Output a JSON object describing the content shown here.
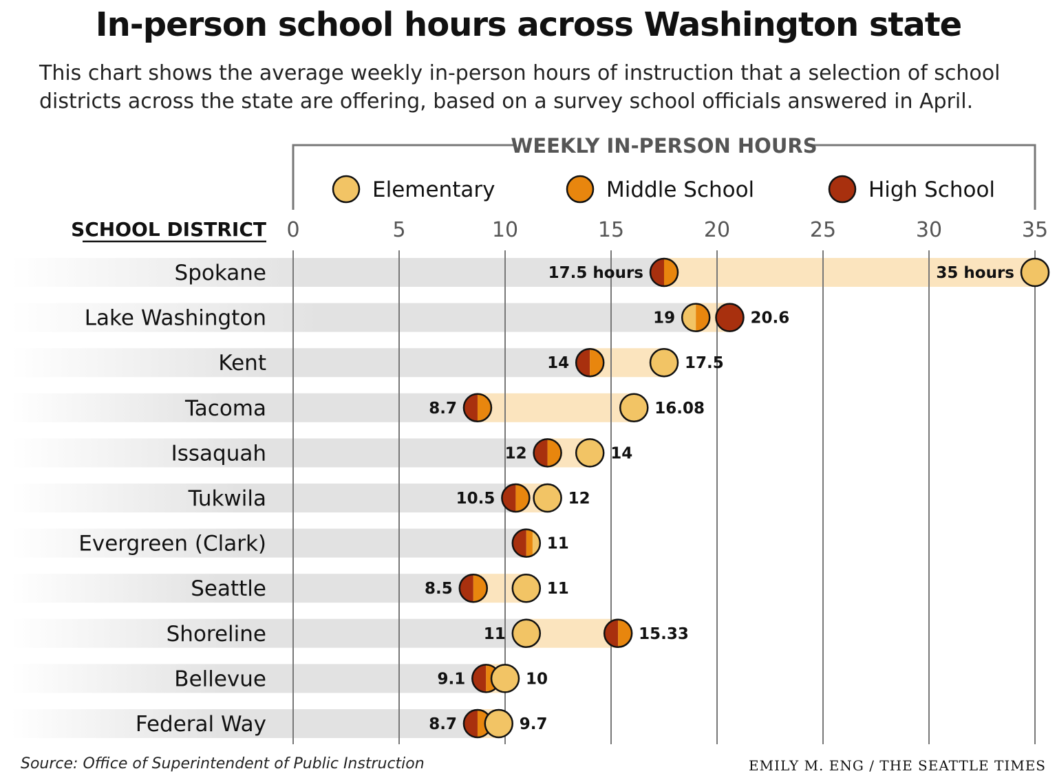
{
  "title": "In-person school hours across Washington state",
  "subtitle": "This chart shows the average weekly in-person hours of instruction that a selection of school districts across the state are offering, based on a survey school officials answered in April.",
  "source": "Source: Office of Superintendent of Public Instruction",
  "credit": "EMILY M. ENG / THE SEATTLE TIMES",
  "colors": {
    "elementary": "#f2c465",
    "middle": "#e8860e",
    "high": "#a8300e",
    "range_band": "#fbe4be",
    "background_band": "#e2e2e2",
    "gridline": "#777777"
  },
  "chart_data": {
    "type": "dot-range",
    "title": "In-person school hours across Washington state",
    "axis_title": "WEEKLY IN-PERSON HOURS",
    "category_header": "SCHOOL DISTRICT",
    "xlim": [
      0,
      35
    ],
    "ticks": [
      0,
      5,
      10,
      15,
      20,
      25,
      30,
      35
    ],
    "grid": true,
    "legend_position": "top",
    "legend": [
      "Elementary",
      "Middle School",
      "High School"
    ],
    "series_order": [
      "elementary",
      "middle",
      "high"
    ],
    "categories": [
      "Spokane",
      "Lake Washington",
      "Kent",
      "Tacoma",
      "Issaquah",
      "Tukwila",
      "Evergreen (Clark)",
      "Seattle",
      "Shoreline",
      "Bellevue",
      "Federal Way"
    ],
    "series": [
      {
        "name": "Elementary",
        "values": [
          35,
          19,
          17.5,
          16.08,
          14,
          12,
          11,
          11,
          11,
          10,
          9.7
        ]
      },
      {
        "name": "Middle School",
        "values": [
          17.5,
          19,
          14,
          8.7,
          12,
          10.5,
          11,
          8.5,
          15.33,
          9.1,
          8.7
        ]
      },
      {
        "name": "High School",
        "values": [
          17.5,
          20.6,
          14,
          8.7,
          12,
          10.5,
          11,
          8.5,
          15.33,
          9.1,
          8.7
        ]
      }
    ],
    "value_labels": [
      [
        "17.5 hours",
        "35 hours"
      ],
      [
        "19",
        "20.6"
      ],
      [
        "14",
        "17.5"
      ],
      [
        "8.7",
        "16.08"
      ],
      [
        "12",
        "14"
      ],
      [
        "10.5",
        "12"
      ],
      [
        "",
        "11"
      ],
      [
        "8.5",
        "11"
      ],
      [
        "11",
        "15.33"
      ],
      [
        "9.1",
        "10"
      ],
      [
        "8.7",
        "9.7"
      ]
    ]
  }
}
